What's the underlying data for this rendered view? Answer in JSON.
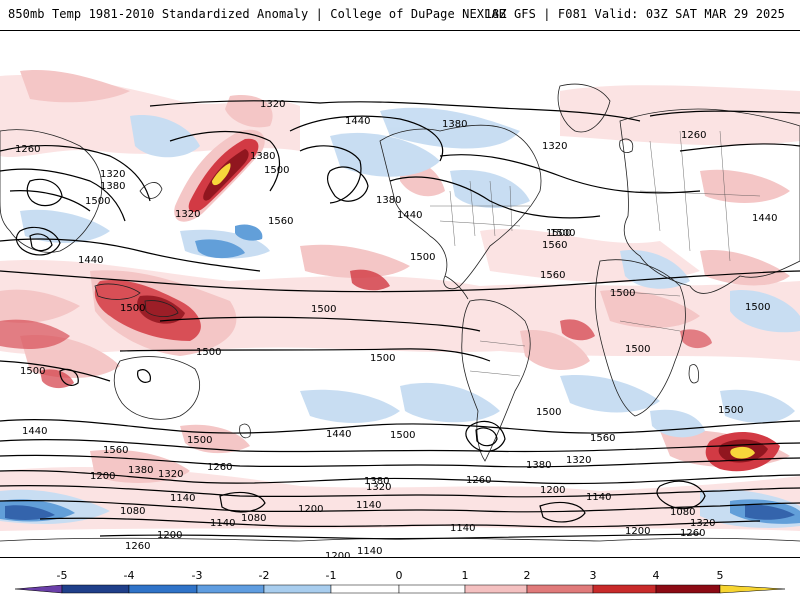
{
  "header": {
    "title_left": "850mb Temp 1981-2010 Standardized Anomaly | College of DuPage NEXLAB",
    "title_right": "18Z GFS | F081 Valid: 03Z SAT MAR 29 2025"
  },
  "map": {
    "contour_labels": [
      "1320",
      "1440",
      "1380",
      "1260",
      "1320",
      "1380",
      "1500",
      "1320",
      "1380",
      "1500",
      "1560",
      "1320",
      "1380",
      "1440",
      "1500",
      "1560",
      "1260",
      "1440",
      "1500",
      "1440",
      "1560",
      "1500",
      "1500",
      "1500",
      "1500",
      "1500",
      "1500",
      "1500",
      "1500",
      "1500",
      "1500",
      "1500",
      "1500",
      "1560",
      "1440",
      "1500",
      "1440",
      "1380",
      "1320",
      "1560",
      "1200",
      "1380",
      "1320",
      "1260",
      "1380",
      "1320",
      "1200",
      "1140",
      "1140",
      "1080",
      "1140",
      "1200",
      "1260",
      "1200",
      "1140",
      "1080",
      "1260",
      "1200",
      "1140",
      "1260",
      "1140",
      "1200",
      "1260",
      "1320",
      "1080"
    ],
    "colors": {
      "strong_warm": "#8c0a14",
      "warm": "#d0303a",
      "mild_warm": "#f4c3c3",
      "faint_warm": "#fbe2e2",
      "mild_cool": "#c6dcf2",
      "cool": "#5a9ad8",
      "strong_cool": "#2a5ca8",
      "extreme_warm": "#f7d531",
      "contour": "#000000",
      "border": "#4a4a4a"
    }
  },
  "colorbar": {
    "ticks": [
      "-5",
      "-4",
      "-3",
      "-2",
      "-1",
      "0",
      "1",
      "2",
      "3",
      "4",
      "5"
    ],
    "colors": [
      "#6a3fa8",
      "#1f3f8a",
      "#2f73c8",
      "#5f9de0",
      "#a8cdee",
      "#ffffff",
      "#ffffff",
      "#f4c0c0",
      "#e07a7a",
      "#c82a2a",
      "#8c0a14",
      "#f7d531"
    ]
  }
}
